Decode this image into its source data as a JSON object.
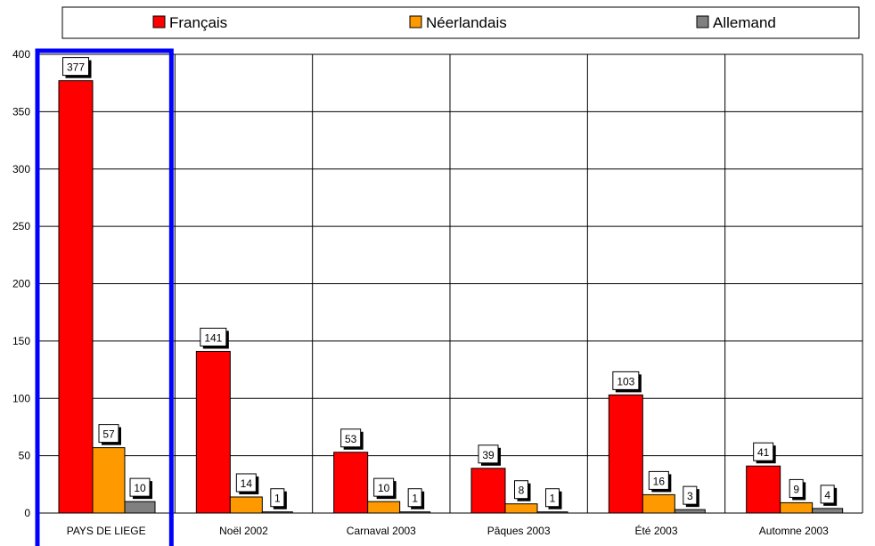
{
  "chart_data": {
    "type": "bar",
    "categories": [
      "PAYS DE LIEGE",
      "Noël 2002",
      "Carnaval 2003",
      "Pâques 2003",
      "Été 2003",
      "Automne 2003"
    ],
    "series": [
      {
        "name": "Français",
        "values": [
          377,
          141,
          53,
          39,
          103,
          41
        ],
        "color": "#ff0000"
      },
      {
        "name": "Néerlandais",
        "values": [
          57,
          14,
          10,
          8,
          16,
          9
        ],
        "color": "#ff9900"
      },
      {
        "name": "Allemand",
        "values": [
          10,
          1,
          1,
          1,
          3,
          4
        ],
        "color": "#808080"
      }
    ],
    "ylim": [
      0,
      400
    ],
    "yticks": [
      0,
      50,
      100,
      150,
      200,
      250,
      300,
      350,
      400
    ],
    "grid": true,
    "legend_position": "top",
    "highlight": {
      "category": "PAYS DE LIEGE",
      "color": "#0000ff"
    }
  }
}
